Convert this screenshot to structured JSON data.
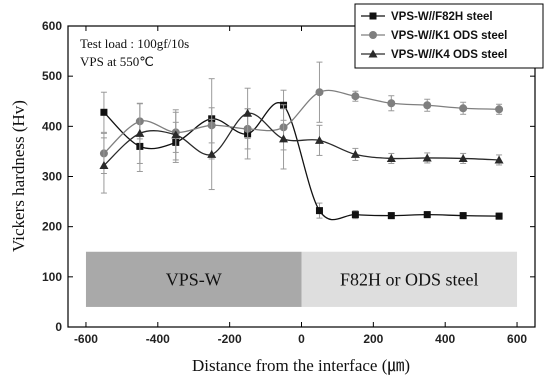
{
  "chart_data": {
    "type": "line",
    "xlabel": "Distance from the interface (㎛)",
    "ylabel": "Vickers hardness (Hv)",
    "xlim": [
      -650,
      650
    ],
    "ylim": [
      0,
      600
    ],
    "xticks": [
      -600,
      -400,
      -200,
      0,
      200,
      400,
      600
    ],
    "yticks": [
      0,
      100,
      200,
      300,
      400,
      500,
      600
    ],
    "annotations": [
      "Test load : 100gf/10s",
      "VPS at 550℃"
    ],
    "regions": [
      {
        "label": "VPS-W",
        "x_range": [
          -600,
          0
        ],
        "y_range": [
          40,
          150
        ],
        "color": "#a9a9a9"
      },
      {
        "label": "F82H or ODS steel",
        "x_range": [
          0,
          600
        ],
        "y_range": [
          40,
          150
        ],
        "color": "#dedede"
      }
    ],
    "legend_position": "top-right",
    "series": [
      {
        "name": "VPS-W//F82H steel",
        "marker": "square",
        "x": [
          -550,
          -450,
          -350,
          -250,
          -150,
          -50,
          50,
          150,
          250,
          350,
          450,
          550
        ],
        "y": [
          428,
          360,
          368,
          415,
          385,
          442,
          232,
          224,
          222,
          224,
          222,
          221
        ],
        "err": [
          40,
          50,
          40,
          80,
          50,
          30,
          15,
          8,
          6,
          6,
          6,
          6
        ]
      },
      {
        "name": "VPS-W//K1 ODS steel",
        "marker": "circle",
        "x": [
          -550,
          -450,
          -350,
          -250,
          -150,
          -50,
          50,
          150,
          250,
          350,
          450,
          550
        ],
        "y": [
          346,
          410,
          388,
          402,
          395,
          398,
          468,
          460,
          446,
          442,
          436,
          434
        ],
        "err": [
          40,
          35,
          40,
          35,
          40,
          45,
          60,
          10,
          15,
          12,
          12,
          10
        ]
      },
      {
        "name": "VPS-W//K4 ODS steel",
        "marker": "triangle",
        "x": [
          -550,
          -450,
          -350,
          -250,
          -150,
          -50,
          50,
          150,
          250,
          350,
          450,
          550
        ],
        "y": [
          322,
          386,
          383,
          344,
          426,
          375,
          372,
          344,
          336,
          337,
          336,
          333
        ],
        "err": [
          55,
          60,
          50,
          70,
          50,
          60,
          30,
          12,
          10,
          10,
          10,
          10
        ]
      }
    ]
  }
}
